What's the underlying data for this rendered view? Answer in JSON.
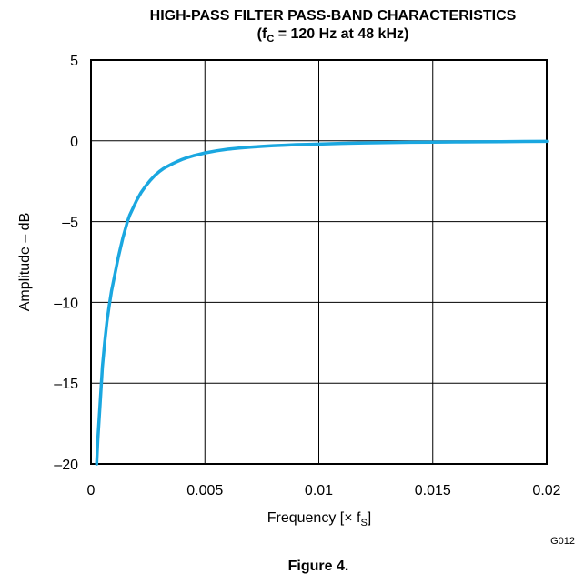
{
  "chart_data": {
    "type": "line",
    "title": "HIGH-PASS FILTER PASS-BAND CHARACTERISTICS",
    "subtitle": {
      "prefix": "(f",
      "sub": "C",
      "suffix": " = 120 Hz at 48 kHz)"
    },
    "xlabel": {
      "main": "Frequency [× f",
      "sub": "S",
      "end": "]"
    },
    "ylabel": "Amplitude – dB",
    "xlim": [
      0,
      0.02
    ],
    "ylim": [
      -20,
      5
    ],
    "x_ticks": [
      0,
      0.005,
      0.01,
      0.015,
      0.02
    ],
    "x_tick_labels": [
      "0",
      "0.005",
      "0.01",
      "0.015",
      "0.02"
    ],
    "y_ticks": [
      5,
      0,
      -5,
      -10,
      -15,
      -20
    ],
    "y_tick_labels": [
      "5",
      "0",
      "–5",
      "–10",
      "–15",
      "–20"
    ],
    "grid": true,
    "line_color": "#1aa7e0",
    "series": [
      {
        "x": [
          0.00025,
          0.0003,
          0.0004,
          0.0005,
          0.0006,
          0.0007,
          0.0008,
          0.0009,
          0.001,
          0.0011,
          0.0012,
          0.0013,
          0.0014,
          0.0015,
          0.0016,
          0.0017,
          0.0018,
          0.002,
          0.0022,
          0.0024,
          0.0026,
          0.0028,
          0.003,
          0.0032,
          0.0034,
          0.0036,
          0.0038,
          0.004,
          0.0042,
          0.0045,
          0.0048,
          0.005,
          0.0055,
          0.006,
          0.0065,
          0.007,
          0.0075,
          0.008,
          0.0085,
          0.009,
          0.0095,
          0.01,
          0.011,
          0.012,
          0.013,
          0.014,
          0.015,
          0.016,
          0.017,
          0.018,
          0.019,
          0.02
        ],
        "y": [
          -20,
          -18.5,
          -16.3,
          -14,
          -12.5,
          -11.2,
          -10.2,
          -9.3,
          -8.6,
          -7.9,
          -7.2,
          -6.6,
          -6.0,
          -5.5,
          -5.0,
          -4.6,
          -4.3,
          -3.7,
          -3.2,
          -2.8,
          -2.45,
          -2.15,
          -1.9,
          -1.7,
          -1.55,
          -1.4,
          -1.27,
          -1.15,
          -1.05,
          -0.92,
          -0.82,
          -0.75,
          -0.62,
          -0.52,
          -0.45,
          -0.39,
          -0.34,
          -0.3,
          -0.27,
          -0.24,
          -0.22,
          -0.2,
          -0.16,
          -0.13,
          -0.11,
          -0.09,
          -0.08,
          -0.07,
          -0.06,
          -0.05,
          -0.04,
          -0.03
        ]
      }
    ]
  },
  "figure_code": "G012",
  "caption": "Figure 4."
}
